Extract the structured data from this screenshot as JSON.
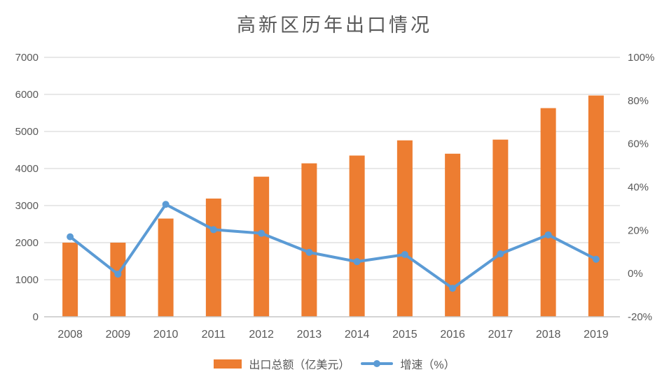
{
  "chart_data": {
    "type": "combo-bar-line",
    "title": "高新区历年出口情况",
    "categories": [
      "2008",
      "2009",
      "2010",
      "2011",
      "2012",
      "2013",
      "2014",
      "2015",
      "2016",
      "2017",
      "2018",
      "2019"
    ],
    "series": [
      {
        "name": "出口总额（亿美元）",
        "type": "bar",
        "axis": "left",
        "color": "#ED7D31",
        "values": [
          2000,
          2000,
          2650,
          3190,
          3780,
          4140,
          4350,
          4760,
          4400,
          4780,
          5630,
          5970
        ]
      },
      {
        "name": "增速（%）",
        "type": "line",
        "axis": "right",
        "color": "#5B9BD5",
        "marker_color": "#5B9BD5",
        "values": [
          17.0,
          -0.3,
          32.0,
          20.3,
          18.6,
          9.8,
          5.5,
          8.8,
          -6.8,
          9.1,
          17.9,
          6.6
        ]
      }
    ],
    "left_axis": {
      "min": 0,
      "max": 7000,
      "step": 1000,
      "tick_labels": [
        "0",
        "1000",
        "2000",
        "3000",
        "4000",
        "5000",
        "6000",
        "7000"
      ]
    },
    "right_axis": {
      "min": -20,
      "max": 100,
      "step": 20,
      "tick_labels": [
        "-20%",
        "0%",
        "20%",
        "40%",
        "60%",
        "80%",
        "100%"
      ]
    },
    "grid": true,
    "legend_position": "bottom",
    "colors": {
      "grid": "#D9D9D9",
      "axis_line": "#C6C6C6",
      "text": "#595959",
      "title_text": "#595959"
    }
  }
}
